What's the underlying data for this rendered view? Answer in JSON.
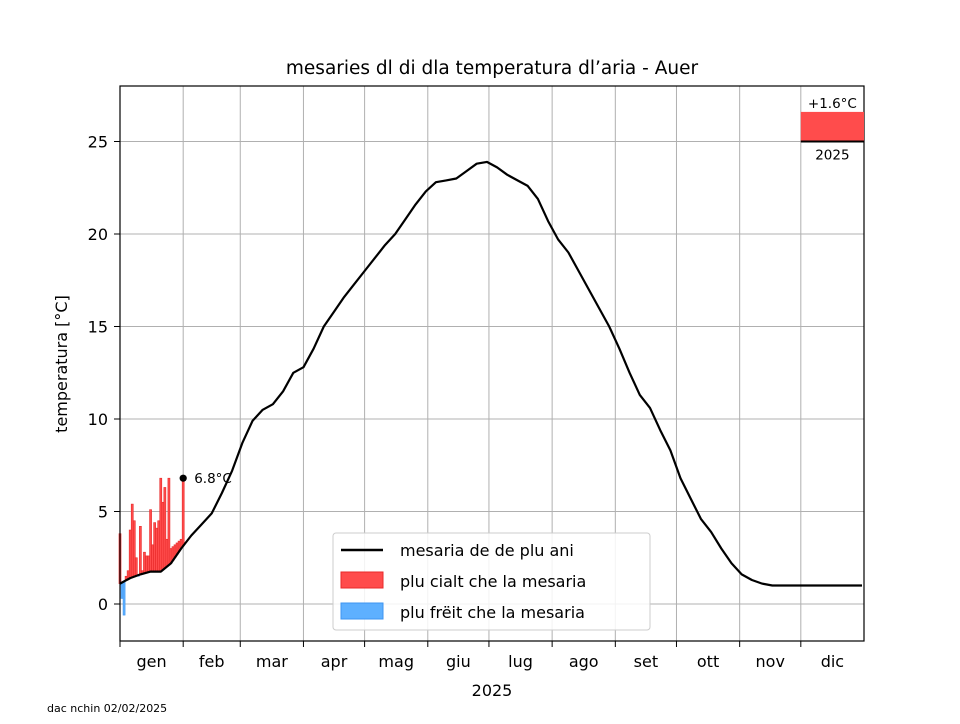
{
  "chart_data": {
    "type": "line",
    "title": "mesaries dl di dla temperatura dl’aria - Auer",
    "ylabel": "temperatura [°C]",
    "xlabel": "2025",
    "ylim": [
      -2,
      28
    ],
    "yticks": [
      0,
      5,
      10,
      15,
      20,
      25
    ],
    "grid": true,
    "legend_position": "bottom-center",
    "month_labels": [
      "gen",
      "feb",
      "mar",
      "apr",
      "mag",
      "giu",
      "lug",
      "ago",
      "set",
      "ott",
      "nov",
      "dic"
    ],
    "mean_series": {
      "name": "mesaria de de plu ani",
      "color": "#000000",
      "x": [
        "2025-01-01",
        "2025-01-06",
        "2025-01-11",
        "2025-01-16",
        "2025-01-21",
        "2025-01-26",
        "2025-01-31",
        "2025-02-05",
        "2025-02-10",
        "2025-02-15",
        "2025-02-20",
        "2025-02-25",
        "2025-03-02",
        "2025-03-07",
        "2025-03-12",
        "2025-03-17",
        "2025-03-22",
        "2025-03-27",
        "2025-04-01",
        "2025-04-06",
        "2025-04-11",
        "2025-04-16",
        "2025-04-21",
        "2025-04-26",
        "2025-05-01",
        "2025-05-06",
        "2025-05-11",
        "2025-05-16",
        "2025-05-21",
        "2025-05-26",
        "2025-05-31",
        "2025-06-05",
        "2025-06-10",
        "2025-06-15",
        "2025-06-20",
        "2025-06-25",
        "2025-06-30",
        "2025-07-05",
        "2025-07-10",
        "2025-07-15",
        "2025-07-20",
        "2025-07-25",
        "2025-07-30",
        "2025-08-04",
        "2025-08-09",
        "2025-08-14",
        "2025-08-19",
        "2025-08-24",
        "2025-08-29",
        "2025-09-03",
        "2025-09-08",
        "2025-09-13",
        "2025-09-18",
        "2025-09-23",
        "2025-09-28",
        "2025-10-03",
        "2025-10-08",
        "2025-10-13",
        "2025-10-18",
        "2025-10-23",
        "2025-10-28",
        "2025-11-02",
        "2025-11-07",
        "2025-11-12",
        "2025-11-17",
        "2025-11-22",
        "2025-11-27",
        "2025-12-02",
        "2025-12-07",
        "2025-12-12",
        "2025-12-17",
        "2025-12-22",
        "2025-12-27",
        "2025-12-31"
      ],
      "y": [
        1.1,
        1.4,
        1.6,
        1.75,
        1.75,
        2.2,
        3.0,
        3.7,
        4.3,
        4.9,
        6.0,
        7.2,
        8.7,
        9.9,
        10.5,
        10.8,
        11.5,
        12.5,
        12.8,
        13.8,
        15.0,
        15.8,
        16.6,
        17.3,
        18.0,
        18.7,
        19.4,
        20.0,
        20.8,
        21.6,
        22.3,
        22.8,
        22.9,
        23.0,
        23.4,
        23.8,
        23.9,
        23.6,
        23.2,
        22.9,
        22.6,
        21.9,
        20.7,
        19.7,
        19.0,
        18.0,
        17.0,
        16.0,
        15.0,
        13.8,
        12.5,
        11.3,
        10.6,
        9.4,
        8.3,
        6.8,
        5.7,
        4.6,
        3.9,
        3.0,
        2.2,
        1.6,
        1.3,
        1.1,
        1.0,
        1.0,
        1.0,
        1.0,
        1.0,
        1.0,
        1.0,
        1.0,
        1.0,
        1.0
      ]
    },
    "daily_series": {
      "name": "2025",
      "x": [
        "2025-01-01",
        "2025-01-02",
        "2025-01-03",
        "2025-01-04",
        "2025-01-05",
        "2025-01-06",
        "2025-01-07",
        "2025-01-08",
        "2025-01-09",
        "2025-01-10",
        "2025-01-11",
        "2025-01-12",
        "2025-01-13",
        "2025-01-14",
        "2025-01-15",
        "2025-01-16",
        "2025-01-17",
        "2025-01-18",
        "2025-01-19",
        "2025-01-20",
        "2025-01-21",
        "2025-01-22",
        "2025-01-23",
        "2025-01-24",
        "2025-01-25",
        "2025-01-26",
        "2025-01-27",
        "2025-01-28",
        "2025-01-29",
        "2025-01-30",
        "2025-01-31",
        "2025-02-01"
      ],
      "y": [
        3.8,
        0.3,
        -0.6,
        1.5,
        1.8,
        4.0,
        5.4,
        4.5,
        2.5,
        1.5,
        4.2,
        1.8,
        2.8,
        2.6,
        2.6,
        5.1,
        3.2,
        4.4,
        4.1,
        4.5,
        6.8,
        5.5,
        6.3,
        3.5,
        6.8,
        3.0,
        3.1,
        3.2,
        3.3,
        3.4,
        3.5,
        6.8
      ]
    },
    "warmer_series": {
      "name": "plu cialt che la mesaria",
      "color": "#ff4c4c"
    },
    "colder_series": {
      "name": "plu frëit che la mesaria",
      "color": "#5eb0ff"
    },
    "last_value_label": "6.8°C",
    "year_anomaly": {
      "value_label": "+1.6°C",
      "value": 1.6,
      "year_label": "2025",
      "baseline": 25
    }
  },
  "footer": {
    "credit": "dac nchin 02/02/2025"
  }
}
